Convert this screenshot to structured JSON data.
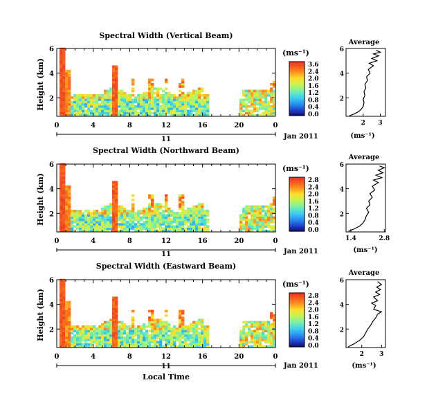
{
  "chart_data": [
    {
      "type": "heatmap",
      "title": "Spectral Width (Vertical Beam)",
      "ylabel": "Height (km)",
      "yticks": [
        "6",
        "4",
        "2"
      ],
      "xticks": [
        "0",
        "4",
        "8",
        "12",
        "16",
        "20",
        "0"
      ],
      "xlim": [
        0,
        24
      ],
      "ylim": [
        0.5,
        6
      ],
      "date_label": "11",
      "month_label": "Jan 2011",
      "colorbar": {
        "unit": "(ms⁻¹)",
        "ticks": [
          "3.6",
          "2.4",
          "2.0",
          "1.6",
          "1.2",
          "0.8",
          "0.4",
          "0.0"
        ],
        "range": [
          0,
          3.6
        ]
      },
      "average": {
        "title": "Average",
        "xlabel": "(ms⁻¹)",
        "xticks": [
          "2",
          "3"
        ],
        "yticks": [
          "6",
          "4",
          "2"
        ],
        "xlim": [
          1.0,
          3.3
        ],
        "profile": [
          [
            1.2,
            0.55
          ],
          [
            1.5,
            0.7
          ],
          [
            1.75,
            0.9
          ],
          [
            1.9,
            1.1
          ],
          [
            2.0,
            1.3
          ],
          [
            2.05,
            1.6
          ],
          [
            2.0,
            1.9
          ],
          [
            2.1,
            2.2
          ],
          [
            2.05,
            2.5
          ],
          [
            2.15,
            2.8
          ],
          [
            2.1,
            3.1
          ],
          [
            2.25,
            3.4
          ],
          [
            2.2,
            3.7
          ],
          [
            2.4,
            4.0
          ],
          [
            2.3,
            4.3
          ],
          [
            2.6,
            4.6
          ],
          [
            2.35,
            4.8
          ],
          [
            2.8,
            5.0
          ],
          [
            2.5,
            5.2
          ],
          [
            2.9,
            5.4
          ],
          [
            2.6,
            5.55
          ],
          [
            3.0,
            5.7
          ],
          [
            2.75,
            5.85
          ]
        ]
      }
    },
    {
      "type": "heatmap",
      "title": "Spectral Width (Northward Beam)",
      "ylabel": "Height (km)",
      "yticks": [
        "6",
        "4",
        "2"
      ],
      "xticks": [
        "0",
        "4",
        "8",
        "12",
        "16",
        "20",
        "0"
      ],
      "xlim": [
        0,
        24
      ],
      "ylim": [
        0.5,
        6
      ],
      "date_label": "11",
      "month_label": "Jan 2011",
      "colorbar": {
        "unit": "(ms⁻¹)",
        "ticks": [
          "2.8",
          "2.4",
          "2.0",
          "1.6",
          "1.2",
          "0.8",
          "0.4",
          "0.0"
        ],
        "range": [
          0,
          2.8
        ]
      },
      "average": {
        "title": "Average",
        "xlabel": "(ms⁻¹)",
        "xticks": [
          "1.4",
          "2.8"
        ],
        "yticks": [
          "6",
          "4",
          "2"
        ],
        "xlim": [
          1.2,
          2.85
        ],
        "profile": [
          [
            1.3,
            0.55
          ],
          [
            1.55,
            0.75
          ],
          [
            1.75,
            0.95
          ],
          [
            1.9,
            1.2
          ],
          [
            2.0,
            1.5
          ],
          [
            2.05,
            1.8
          ],
          [
            2.15,
            2.1
          ],
          [
            2.05,
            2.4
          ],
          [
            2.2,
            2.7
          ],
          [
            2.15,
            3.0
          ],
          [
            2.3,
            3.3
          ],
          [
            2.2,
            3.6
          ],
          [
            2.4,
            3.9
          ],
          [
            2.3,
            4.2
          ],
          [
            2.55,
            4.5
          ],
          [
            2.35,
            4.7
          ],
          [
            2.7,
            4.9
          ],
          [
            2.45,
            5.1
          ],
          [
            2.75,
            5.3
          ],
          [
            2.55,
            5.5
          ],
          [
            2.8,
            5.7
          ],
          [
            2.6,
            5.85
          ]
        ]
      }
    },
    {
      "type": "heatmap",
      "title": "Spectral Width (Eastward Beam)",
      "ylabel": "Height (km)",
      "yticks": [
        "6",
        "4",
        "2"
      ],
      "xticks": [
        "0",
        "4",
        "8",
        "12",
        "16",
        "20",
        "0"
      ],
      "xlim": [
        0,
        24
      ],
      "ylim": [
        0.5,
        6
      ],
      "date_label": "11",
      "month_label": "Jan 2011",
      "xlabel": "Local Time",
      "colorbar": {
        "unit": "(ms⁻¹)",
        "ticks": [
          "2.8",
          "2.4",
          "2.0",
          "1.6",
          "1.2",
          "0.8",
          "0.4",
          "0.0"
        ],
        "range": [
          0,
          2.8
        ]
      },
      "average": {
        "title": "Average",
        "xlabel": "(ms⁻¹)",
        "xticks": [
          "2",
          "3"
        ],
        "yticks": [
          "6",
          "4",
          "2"
        ],
        "xlim": [
          1.2,
          3.2
        ],
        "profile": [
          [
            1.3,
            0.55
          ],
          [
            1.6,
            0.8
          ],
          [
            1.9,
            1.1
          ],
          [
            2.1,
            1.4
          ],
          [
            2.2,
            1.7
          ],
          [
            2.3,
            2.0
          ],
          [
            2.45,
            2.3
          ],
          [
            2.55,
            2.6
          ],
          [
            2.7,
            2.9
          ],
          [
            2.8,
            3.2
          ],
          [
            3.0,
            3.4
          ],
          [
            2.6,
            3.6
          ],
          [
            2.7,
            3.9
          ],
          [
            2.5,
            4.1
          ],
          [
            2.8,
            4.3
          ],
          [
            2.6,
            4.6
          ],
          [
            2.9,
            4.8
          ],
          [
            2.7,
            5.0
          ],
          [
            2.95,
            5.2
          ],
          [
            2.75,
            5.4
          ],
          [
            3.0,
            5.6
          ],
          [
            2.8,
            5.85
          ]
        ]
      }
    }
  ]
}
